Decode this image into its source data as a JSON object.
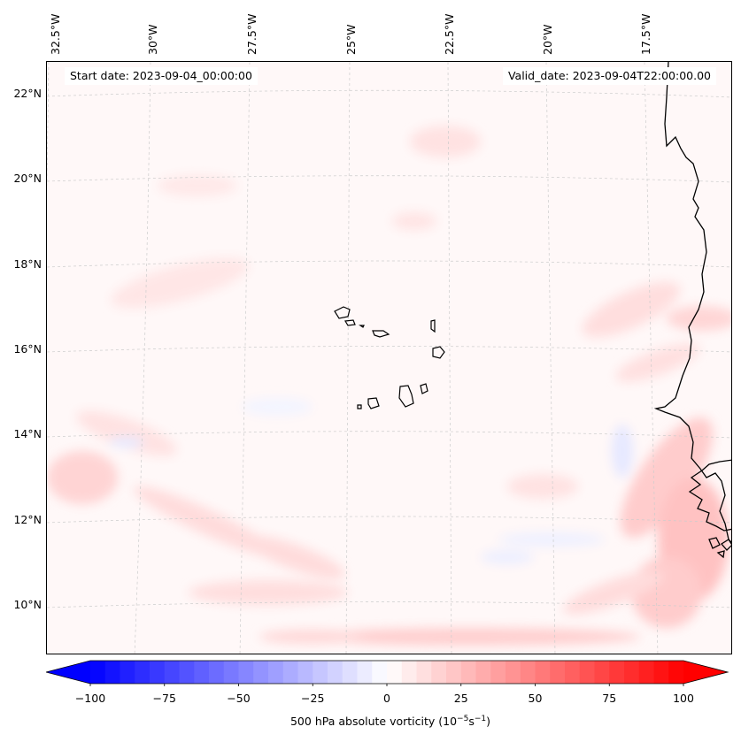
{
  "map": {
    "start_date_text": "Start date: 2023-09-04_00:00:00",
    "valid_date_text": "Valid_date: 2023-09-04T22:00:00.00",
    "lon_labels": [
      "32.5°W",
      "30°W",
      "27.5°W",
      "25°W",
      "22.5°W",
      "20°W",
      "17.5°W"
    ],
    "lat_labels": [
      "22°N",
      "20°N",
      "18°N",
      "16°N",
      "14°N",
      "12°N",
      "10°N"
    ],
    "colorbar": {
      "ticks": [
        "−100",
        "−75",
        "−50",
        "−25",
        "0",
        "25",
        "50",
        "75",
        "100"
      ],
      "label_main": "500 hPa absolute vorticity (10",
      "label_exp1": "−5",
      "label_mid": "s",
      "label_exp2": "−1",
      "label_end": ")",
      "min": -100,
      "max": 100,
      "negative_color": "#0000ff",
      "positive_color": "#ff0000"
    }
  }
}
